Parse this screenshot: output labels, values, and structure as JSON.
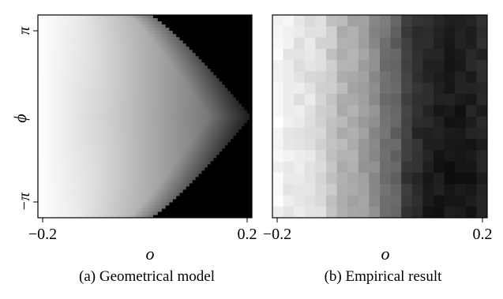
{
  "chart_data": [
    {
      "type": "heatmap",
      "caption_label": "(a)",
      "caption_text": "Geometrical model",
      "xlabel": "o",
      "ylabel": "ϕ",
      "xlim": [
        -0.2,
        0.2
      ],
      "ylim": [
        -3.14159,
        3.14159
      ],
      "x_ticks": [
        {
          "value": -0.2,
          "label": "−0.2"
        },
        {
          "value": 0.2,
          "label": "0.2"
        }
      ],
      "y_ticks": [
        {
          "value": 3.14159,
          "label": "π"
        },
        {
          "value": -3.14159,
          "label": "−π"
        }
      ],
      "colormap": "grayscale white-to-black",
      "description_model": "diamond gradient region: white at left edge darkening toward black at the right; apex at o≈0 for ϕ=±π, rightmost point o≈0.2 at ϕ=0; outside region black",
      "colors": {
        "low": "#ffffff",
        "high": "#000000"
      }
    },
    {
      "type": "heatmap",
      "caption_label": "(b)",
      "caption_text": "Empirical result",
      "xlabel": "o",
      "ylabel": "",
      "xlim": [
        -0.2,
        0.2
      ],
      "ylim": [
        -3.14159,
        3.14159
      ],
      "x_ticks": [
        {
          "value": -0.2,
          "label": "−0.2"
        },
        {
          "value": 0.2,
          "label": "0.2"
        }
      ],
      "y_ticks": [],
      "colormap": "grayscale white-to-black",
      "grid_size": {
        "cols": 20,
        "rows": 18
      },
      "column_darkness": [
        0.03,
        0.07,
        0.1,
        0.12,
        0.15,
        0.22,
        0.3,
        0.33,
        0.38,
        0.45,
        0.55,
        0.62,
        0.74,
        0.8,
        0.84,
        0.86,
        0.87,
        0.88,
        0.86,
        0.84
      ],
      "colors": {
        "low": "#ffffff",
        "high": "#000000"
      }
    }
  ]
}
